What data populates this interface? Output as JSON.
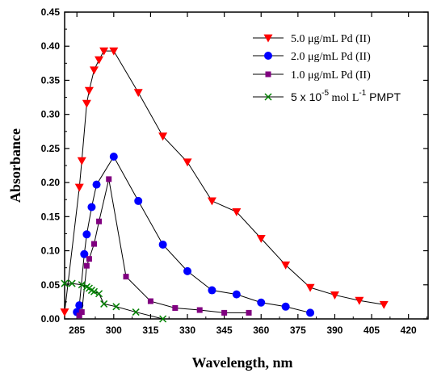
{
  "chart_data": {
    "type": "line",
    "xlabel": "Wavelength, nm",
    "ylabel": "Absorbance",
    "xlim": [
      280,
      428
    ],
    "ylim": [
      0,
      0.45
    ],
    "xticks": [
      "285",
      "300",
      "315",
      "330",
      "345",
      "360",
      "375",
      "390",
      "405",
      "420"
    ],
    "xtick_values": [
      285,
      300,
      315,
      330,
      345,
      360,
      375,
      390,
      405,
      420
    ],
    "yticks": [
      "0.00",
      "0.05",
      "0.10",
      "0.15",
      "0.20",
      "0.25",
      "0.30",
      "0.35",
      "0.40",
      "0.45"
    ],
    "ytick_values": [
      0,
      0.05,
      0.1,
      0.15,
      0.2,
      0.25,
      0.3,
      0.35,
      0.4,
      0.45
    ],
    "legend_position": "top-right",
    "series": [
      {
        "name": "5.0 μg/mL Pd (II)",
        "marker": "triangle-down",
        "color": "#ff0000",
        "x": [
          280,
          286,
          287,
          289,
          290,
          292,
          294,
          296,
          300,
          310,
          320,
          330,
          340,
          350,
          360,
          370,
          380,
          390,
          400,
          410
        ],
        "y": [
          0.01,
          0.193,
          0.232,
          0.316,
          0.335,
          0.365,
          0.38,
          0.393,
          0.393,
          0.332,
          0.268,
          0.23,
          0.173,
          0.157,
          0.118,
          0.079,
          0.046,
          0.035,
          0.027,
          0.021
        ]
      },
      {
        "name": "2.0 μg/mL Pd (II)",
        "marker": "circle",
        "color": "#0000ff",
        "x": [
          285,
          286,
          288,
          289,
          291,
          293,
          300,
          310,
          320,
          330,
          340,
          350,
          360,
          370,
          380
        ],
        "y": [
          0.01,
          0.02,
          0.095,
          0.124,
          0.164,
          0.197,
          0.238,
          0.173,
          0.109,
          0.07,
          0.042,
          0.036,
          0.024,
          0.018,
          0.009
        ]
      },
      {
        "name": "1.0 μg/mL Pd (II)",
        "marker": "square",
        "color": "#800080",
        "x": [
          286,
          287,
          289,
          290,
          292,
          294,
          298,
          305,
          315,
          325,
          335,
          345,
          355
        ],
        "y": [
          0.005,
          0.01,
          0.078,
          0.088,
          0.11,
          0.143,
          0.205,
          0.062,
          0.026,
          0.016,
          0.013,
          0.009,
          0.009
        ]
      },
      {
        "name": "5 x 10",
        "marker": "x",
        "color": "#008000",
        "x": [
          280,
          283,
          287,
          289,
          290,
          291,
          292,
          294,
          296,
          301,
          309,
          320
        ],
        "y": [
          0.052,
          0.052,
          0.05,
          0.047,
          0.045,
          0.042,
          0.04,
          0.037,
          0.022,
          0.018,
          0.01,
          0.0
        ]
      }
    ],
    "legend_texts": {
      "green_sup": "-5",
      "green_mid": " mol L",
      "green_sup2": "-1",
      "green_end": " PMPT"
    }
  }
}
